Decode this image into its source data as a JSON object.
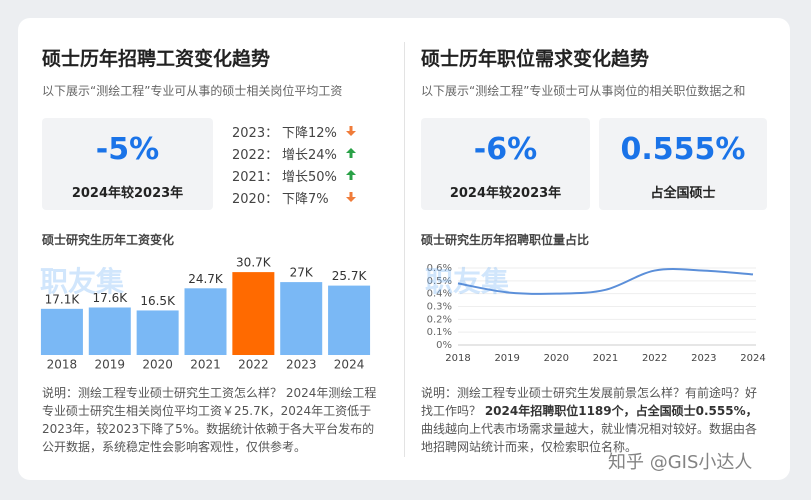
{
  "left": {
    "title": "硕士历年招聘工资变化趋势",
    "subtitle": "以下展示“测绘工程”专业可从事的硕士相关岗位平均工资",
    "stat": {
      "value": "-5%",
      "label": "2024年较2023年"
    },
    "changes": [
      {
        "year": "2023：",
        "text": "下降12%",
        "dir": "down",
        "color": "#f07c3a"
      },
      {
        "year": "2022：",
        "text": "增长24%",
        "dir": "up",
        "color": "#2aa147"
      },
      {
        "year": "2021：",
        "text": "增长50%",
        "dir": "up",
        "color": "#2aa147"
      },
      {
        "year": "2020：",
        "text": "下降7%",
        "dir": "down",
        "color": "#f07c3a"
      }
    ],
    "note": "说明：测绘工程专业硕士研究生工资怎么样？ 2024年测绘工程专业硕士研究生相关岗位平均工资￥25.7K，2024年工资低于2023年，较2023下降了5%。数据统计依赖于各大平台发布的公开数据，系统稳定性会影响客观性，仅供参考。"
  },
  "right": {
    "title": "硕士历年职位需求变化趋势",
    "subtitle": "以下展示“测绘工程”专业硕士可从事岗位的相关职位数据之和",
    "stats": [
      {
        "value": "-6%",
        "label": "2024年较2023年"
      },
      {
        "value": "0.555%",
        "label": "占全国硕士"
      }
    ],
    "note": [
      "说明：测绘工程专业硕士研究生发展前景怎么样？有前途吗？好找工作吗？ ",
      "2024年招聘职位1189个，占全国硕士0.555%，",
      "曲线越向上代表市场需求量越大，就业情况相对较好。数据由各地招聘网站统计而来，仅检索职位名称。"
    ]
  },
  "watermark": "职友集",
  "credit": "知乎 @GIS小达人",
  "chart_data": [
    {
      "type": "bar",
      "title": "硕士研究生历年工资变化",
      "categories": [
        "2018",
        "2019",
        "2020",
        "2021",
        "2022",
        "2023",
        "2024"
      ],
      "values": [
        17.1,
        17.6,
        16.5,
        24.7,
        30.7,
        27,
        25.7
      ],
      "value_labels": [
        "17.1K",
        "17.6K",
        "16.5K",
        "24.7K",
        "30.7K",
        "27K",
        "25.7K"
      ],
      "colors": [
        "#7ab8f5",
        "#7ab8f5",
        "#7ab8f5",
        "#7ab8f5",
        "#ff6a00",
        "#7ab8f5",
        "#7ab8f5"
      ],
      "ylim": [
        0,
        35
      ]
    },
    {
      "type": "line",
      "title": "硕士研究生历年招聘职位量占比",
      "categories": [
        "2018",
        "2019",
        "2020",
        "2021",
        "2022",
        "2023",
        "2024"
      ],
      "values": [
        0.48,
        0.41,
        0.4,
        0.43,
        0.58,
        0.58,
        0.55
      ],
      "color": "#5b8fd9",
      "ylim": [
        0,
        0.6
      ],
      "grid": true,
      "yticks": [
        {
          "value": 0,
          "label": "0%"
        },
        {
          "value": 0.1,
          "label": "0.1%"
        },
        {
          "value": 0.2,
          "label": "0.2%"
        },
        {
          "value": 0.3,
          "label": "0.3%"
        },
        {
          "value": 0.4,
          "label": "0.4%"
        },
        {
          "value": 0.5,
          "label": "0.5%"
        },
        {
          "value": 0.6,
          "label": "0.6%"
        }
      ]
    }
  ]
}
